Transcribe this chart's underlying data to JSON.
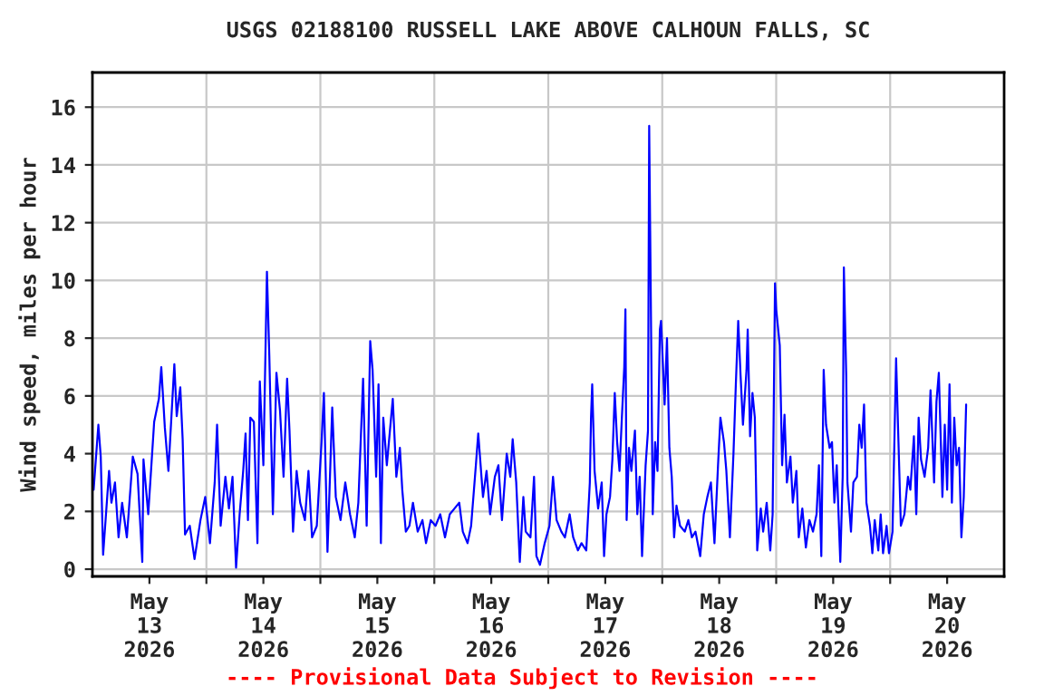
{
  "chart_data": {
    "type": "line",
    "title": "USGS 02188100 RUSSELL LAKE ABOVE CALHOUN FALLS, SC",
    "ylabel": "Wind speed, miles per hour",
    "annotations": [
      "---- Provisional Data Subject to Revision ----"
    ],
    "xlim": [
      "2026-05-13T00:00",
      "2026-05-21T00:00"
    ],
    "xticks": [
      {
        "value": "2026-05-13T12:00",
        "label": "May\n13\n2026"
      },
      {
        "value": "2026-05-14T00:00",
        "label": null
      },
      {
        "value": "2026-05-14T12:00",
        "label": "May\n14\n2026"
      },
      {
        "value": "2026-05-15T00:00",
        "label": null
      },
      {
        "value": "2026-05-15T12:00",
        "label": "May\n15\n2026"
      },
      {
        "value": "2026-05-16T00:00",
        "label": null
      },
      {
        "value": "2026-05-16T12:00",
        "label": "May\n16\n2026"
      },
      {
        "value": "2026-05-17T00:00",
        "label": null
      },
      {
        "value": "2026-05-17T12:00",
        "label": "May\n17\n2026"
      },
      {
        "value": "2026-05-18T00:00",
        "label": null
      },
      {
        "value": "2026-05-18T12:00",
        "label": "May\n18\n2026"
      },
      {
        "value": "2026-05-19T00:00",
        "label": null
      },
      {
        "value": "2026-05-19T12:00",
        "label": "May\n19\n2026"
      },
      {
        "value": "2026-05-20T00:00",
        "label": null
      },
      {
        "value": "2026-05-20T12:00",
        "label": "May\n20\n2026"
      }
    ],
    "ylim": [
      -0.25,
      17.2
    ],
    "yticks": [
      0,
      2,
      4,
      6,
      8,
      10,
      12,
      14,
      16
    ],
    "grid": true,
    "legend": false,
    "x": [
      "2026-05-13T00:15",
      "2026-05-13T01:15",
      "2026-05-13T01:45",
      "2026-05-13T02:15",
      "2026-05-13T03:30",
      "2026-05-13T04:00",
      "2026-05-13T04:45",
      "2026-05-13T05:30",
      "2026-05-13T06:15",
      "2026-05-13T07:15",
      "2026-05-13T08:30",
      "2026-05-13T09:30",
      "2026-05-13T10:30",
      "2026-05-13T10:45",
      "2026-05-13T11:45",
      "2026-05-13T13:00",
      "2026-05-13T14:00",
      "2026-05-13T14:30",
      "2026-05-13T15:15",
      "2026-05-13T16:00",
      "2026-05-13T17:15",
      "2026-05-13T17:45",
      "2026-05-13T18:30",
      "2026-05-13T19:00",
      "2026-05-13T19:30",
      "2026-05-13T20:30",
      "2026-05-13T21:30",
      "2026-05-13T22:45",
      "2026-05-13T23:45",
      "2026-05-14T00:45",
      "2026-05-14T01:45",
      "2026-05-14T02:15",
      "2026-05-14T03:00",
      "2026-05-14T04:00",
      "2026-05-14T04:45",
      "2026-05-14T05:30",
      "2026-05-14T06:15",
      "2026-05-14T07:00",
      "2026-05-14T07:45",
      "2026-05-14T08:15",
      "2026-05-14T08:45",
      "2026-05-14T09:15",
      "2026-05-14T10:00",
      "2026-05-14T10:45",
      "2026-05-14T11:15",
      "2026-05-14T12:00",
      "2026-05-14T12:45",
      "2026-05-14T13:15",
      "2026-05-14T14:00",
      "2026-05-14T14:45",
      "2026-05-14T15:30",
      "2026-05-14T16:15",
      "2026-05-14T17:00",
      "2026-05-14T17:30",
      "2026-05-14T18:15",
      "2026-05-14T19:00",
      "2026-05-14T19:45",
      "2026-05-14T20:45",
      "2026-05-14T21:30",
      "2026-05-14T22:15",
      "2026-05-14T23:15",
      "2026-05-15T00:15",
      "2026-05-15T00:45",
      "2026-05-15T01:30",
      "2026-05-15T02:30",
      "2026-05-15T03:15",
      "2026-05-15T04:15",
      "2026-05-15T05:15",
      "2026-05-15T06:15",
      "2026-05-15T07:15",
      "2026-05-15T08:00",
      "2026-05-15T09:00",
      "2026-05-15T09:45",
      "2026-05-15T10:30",
      "2026-05-15T11:00",
      "2026-05-15T11:45",
      "2026-05-15T12:15",
      "2026-05-15T12:45",
      "2026-05-15T13:15",
      "2026-05-15T14:00",
      "2026-05-15T15:15",
      "2026-05-15T16:00",
      "2026-05-15T16:45",
      "2026-05-15T17:15",
      "2026-05-15T18:00",
      "2026-05-15T18:45",
      "2026-05-15T19:30",
      "2026-05-15T20:30",
      "2026-05-15T21:30",
      "2026-05-15T22:15",
      "2026-05-15T23:15",
      "2026-05-16T00:15",
      "2026-05-16T01:15",
      "2026-05-16T02:15",
      "2026-05-16T03:15",
      "2026-05-16T04:15",
      "2026-05-16T05:15",
      "2026-05-16T06:00",
      "2026-05-16T07:00",
      "2026-05-16T07:45",
      "2026-05-16T08:45",
      "2026-05-16T09:15",
      "2026-05-16T10:15",
      "2026-05-16T11:00",
      "2026-05-16T11:45",
      "2026-05-16T12:45",
      "2026-05-16T13:30",
      "2026-05-16T14:15",
      "2026-05-16T15:15",
      "2026-05-16T16:00",
      "2026-05-16T16:30",
      "2026-05-16T17:15",
      "2026-05-16T18:00",
      "2026-05-16T18:45",
      "2026-05-16T19:15",
      "2026-05-16T20:15",
      "2026-05-16T21:00",
      "2026-05-16T21:30",
      "2026-05-16T22:15",
      "2026-05-16T23:15",
      "2026-05-17T00:15",
      "2026-05-17T01:00",
      "2026-05-17T01:45",
      "2026-05-17T02:45",
      "2026-05-17T03:30",
      "2026-05-17T04:30",
      "2026-05-17T05:15",
      "2026-05-17T06:15",
      "2026-05-17T07:00",
      "2026-05-17T08:00",
      "2026-05-17T08:45",
      "2026-05-17T09:00",
      "2026-05-17T09:15",
      "2026-05-17T09:45",
      "2026-05-17T10:30",
      "2026-05-17T11:15",
      "2026-05-17T11:45",
      "2026-05-17T12:15",
      "2026-05-17T13:00",
      "2026-05-17T13:30",
      "2026-05-17T14:00",
      "2026-05-17T14:30",
      "2026-05-17T15:00",
      "2026-05-17T15:30",
      "2026-05-17T16:00",
      "2026-05-17T16:15",
      "2026-05-17T16:30",
      "2026-05-17T17:00",
      "2026-05-17T17:30",
      "2026-05-17T18:15",
      "2026-05-17T18:45",
      "2026-05-17T19:15",
      "2026-05-17T19:45",
      "2026-05-17T20:30",
      "2026-05-17T21:00",
      "2026-05-17T21:15",
      "2026-05-17T21:30",
      "2026-05-17T22:00",
      "2026-05-17T22:30",
      "2026-05-17T23:00",
      "2026-05-17T23:30",
      "2026-05-17T23:45",
      "2026-05-18T00:30",
      "2026-05-18T01:00",
      "2026-05-18T01:30",
      "2026-05-18T02:00",
      "2026-05-18T02:30",
      "2026-05-18T03:00",
      "2026-05-18T03:45",
      "2026-05-18T04:45",
      "2026-05-18T05:30",
      "2026-05-18T06:15",
      "2026-05-18T07:00",
      "2026-05-18T08:00",
      "2026-05-18T08:45",
      "2026-05-18T09:30",
      "2026-05-18T10:15",
      "2026-05-18T11:00",
      "2026-05-18T11:45",
      "2026-05-18T12:15",
      "2026-05-18T13:00",
      "2026-05-18T13:30",
      "2026-05-18T14:15",
      "2026-05-18T15:00",
      "2026-05-18T15:30",
      "2026-05-18T16:00",
      "2026-05-18T16:30",
      "2026-05-18T17:00",
      "2026-05-18T17:45",
      "2026-05-18T18:00",
      "2026-05-18T18:30",
      "2026-05-18T19:00",
      "2026-05-18T19:30",
      "2026-05-18T20:00",
      "2026-05-18T20:45",
      "2026-05-18T21:15",
      "2026-05-18T22:00",
      "2026-05-18T22:45",
      "2026-05-18T23:15",
      "2026-05-18T23:45",
      "2026-05-19T00:00",
      "2026-05-19T00:45",
      "2026-05-19T01:15",
      "2026-05-19T01:45",
      "2026-05-19T02:15",
      "2026-05-19T03:00",
      "2026-05-19T03:30",
      "2026-05-19T04:15",
      "2026-05-19T04:45",
      "2026-05-19T05:30",
      "2026-05-19T06:15",
      "2026-05-19T07:00",
      "2026-05-19T07:45",
      "2026-05-19T08:30",
      "2026-05-19T09:00",
      "2026-05-19T09:30",
      "2026-05-19T10:00",
      "2026-05-19T10:30",
      "2026-05-19T11:15",
      "2026-05-19T11:45",
      "2026-05-19T12:15",
      "2026-05-19T12:45",
      "2026-05-19T13:30",
      "2026-05-19T14:00",
      "2026-05-19T14:15",
      "2026-05-19T14:45",
      "2026-05-19T15:00",
      "2026-05-19T15:45",
      "2026-05-19T16:15",
      "2026-05-19T17:00",
      "2026-05-19T17:30",
      "2026-05-19T18:00",
      "2026-05-19T18:30",
      "2026-05-19T19:00",
      "2026-05-19T19:45",
      "2026-05-19T20:15",
      "2026-05-19T20:45",
      "2026-05-19T21:30",
      "2026-05-19T22:00",
      "2026-05-19T22:30",
      "2026-05-19T23:15",
      "2026-05-19T23:45",
      "2026-05-20T00:30",
      "2026-05-20T01:15",
      "2026-05-20T01:45",
      "2026-05-20T02:15",
      "2026-05-20T03:00",
      "2026-05-20T03:45",
      "2026-05-20T04:15",
      "2026-05-20T05:00",
      "2026-05-20T05:30",
      "2026-05-20T06:00",
      "2026-05-20T06:30",
      "2026-05-20T07:15",
      "2026-05-20T08:00",
      "2026-05-20T08:30",
      "2026-05-20T09:15",
      "2026-05-20T09:45",
      "2026-05-20T10:15",
      "2026-05-20T11:00",
      "2026-05-20T11:30",
      "2026-05-20T12:00",
      "2026-05-20T12:30",
      "2026-05-20T13:00",
      "2026-05-20T13:30",
      "2026-05-20T14:00",
      "2026-05-20T14:30",
      "2026-05-20T15:00",
      "2026-05-20T15:30",
      "2026-05-20T16:00"
    ],
    "series": [
      {
        "color": "#0000ff",
        "line_style": "solid",
        "values": [
          2.75,
          5.0,
          3.9,
          0.5,
          3.4,
          2.3,
          3.0,
          1.1,
          2.3,
          1.1,
          3.9,
          3.3,
          0.25,
          3.8,
          1.9,
          5.1,
          5.9,
          7.0,
          4.9,
          3.4,
          7.1,
          5.3,
          6.3,
          4.5,
          1.2,
          1.5,
          0.35,
          1.7,
          2.5,
          0.9,
          3.0,
          5.0,
          1.5,
          3.2,
          2.1,
          3.2,
          0.05,
          1.9,
          3.4,
          4.7,
          1.7,
          5.25,
          5.1,
          0.9,
          6.5,
          3.6,
          10.3,
          7.4,
          1.9,
          6.8,
          5.5,
          3.2,
          6.6,
          4.8,
          1.3,
          3.4,
          2.3,
          1.7,
          3.4,
          1.1,
          1.5,
          4.4,
          6.1,
          0.6,
          5.6,
          2.5,
          1.7,
          3.0,
          1.9,
          1.1,
          2.3,
          6.6,
          1.5,
          7.9,
          6.9,
          3.2,
          6.4,
          0.9,
          5.25,
          3.6,
          5.9,
          3.2,
          4.2,
          2.75,
          1.3,
          1.5,
          2.3,
          1.3,
          1.7,
          0.9,
          1.7,
          1.5,
          1.9,
          1.1,
          1.9,
          2.1,
          2.3,
          1.3,
          0.9,
          1.5,
          3.6,
          4.7,
          2.5,
          3.4,
          1.9,
          3.2,
          3.6,
          1.7,
          4.0,
          3.2,
          4.5,
          3.0,
          0.25,
          2.5,
          1.3,
          1.1,
          3.2,
          0.45,
          0.15,
          0.9,
          1.5,
          3.2,
          1.7,
          1.3,
          1.1,
          1.9,
          1.1,
          0.65,
          0.9,
          0.65,
          3.0,
          5.25,
          6.4,
          3.4,
          2.1,
          3.0,
          0.45,
          1.9,
          2.5,
          3.8,
          6.1,
          4.4,
          3.4,
          5.25,
          7.0,
          9.0,
          1.7,
          4.2,
          3.4,
          4.8,
          1.9,
          3.2,
          0.45,
          3.6,
          4.8,
          15.35,
          11.0,
          1.9,
          4.4,
          3.4,
          8.3,
          8.6,
          5.7,
          8.0,
          4.2,
          3.2,
          1.1,
          2.2,
          1.5,
          1.3,
          1.7,
          1.1,
          1.3,
          0.45,
          1.9,
          2.5,
          3.0,
          0.9,
          3.6,
          5.25,
          4.4,
          3.4,
          1.1,
          4.0,
          6.4,
          8.6,
          6.7,
          5.0,
          6.9,
          8.3,
          4.6,
          6.1,
          5.25,
          0.65,
          2.1,
          1.3,
          2.3,
          0.65,
          1.9,
          9.9,
          9.0,
          7.75,
          3.6,
          5.35,
          3.0,
          3.9,
          2.3,
          3.4,
          1.1,
          2.1,
          0.75,
          1.7,
          1.3,
          1.9,
          3.6,
          0.45,
          6.9,
          5.0,
          4.2,
          4.4,
          2.3,
          3.6,
          0.25,
          3.2,
          10.45,
          6.7,
          3.0,
          1.3,
          3.0,
          3.2,
          5.0,
          4.2,
          5.7,
          2.3,
          1.5,
          0.55,
          1.7,
          0.65,
          1.9,
          0.55,
          1.5,
          0.55,
          1.3,
          7.3,
          4.4,
          1.5,
          1.9,
          3.2,
          2.75,
          4.6,
          1.9,
          5.25,
          3.8,
          3.2,
          4.2,
          6.2,
          3.0,
          5.8,
          6.8,
          2.5,
          5.0,
          2.75,
          6.4,
          2.3,
          5.25,
          3.6,
          4.2,
          1.1,
          2.5,
          5.7
        ]
      }
    ]
  }
}
